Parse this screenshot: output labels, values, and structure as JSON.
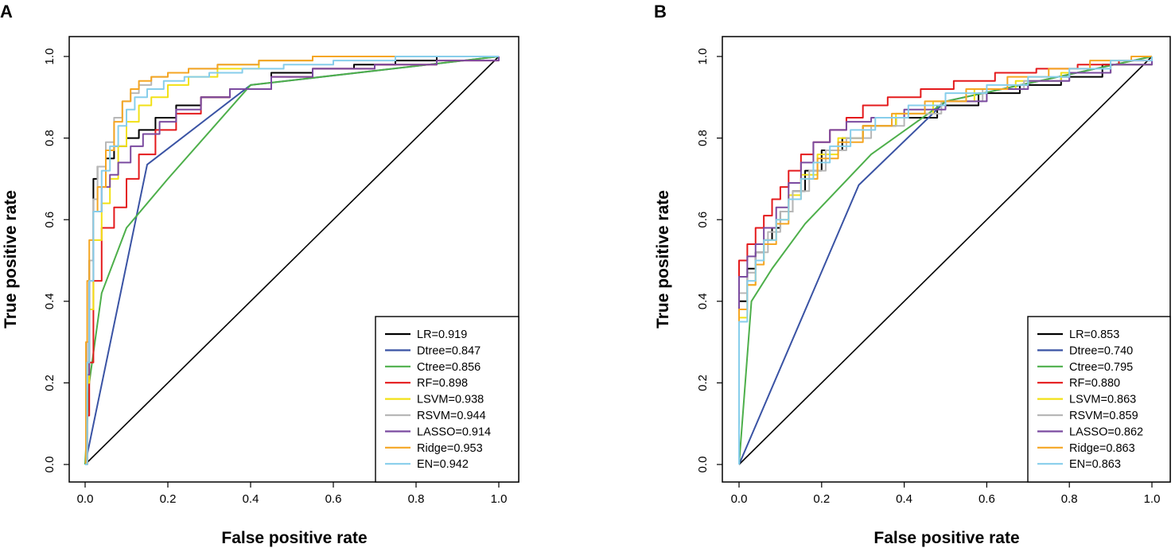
{
  "chart_data": [
    {
      "panel": "A",
      "type": "line",
      "title": "",
      "xlabel": "False positive rate",
      "ylabel": "True positive rate",
      "xlim": [
        0,
        1
      ],
      "ylim": [
        0,
        1
      ],
      "xticks": [
        "0.0",
        "0.2",
        "0.4",
        "0.6",
        "0.8",
        "1.0"
      ],
      "yticks": [
        "0.0",
        "0.2",
        "0.4",
        "0.6",
        "0.8",
        "1.0"
      ],
      "legend_position": "bottom-right",
      "diagonal": true,
      "series": [
        {
          "name": "LR",
          "auc": 0.919,
          "label": "LR=0.919",
          "color": "#000000",
          "x": [
            0,
            0.005,
            0.01,
            0.02,
            0.03,
            0.05,
            0.07,
            0.1,
            0.13,
            0.17,
            0.22,
            0.28,
            0.35,
            0.45,
            0.55,
            0.65,
            0.75,
            0.85,
            1.0
          ],
          "y": [
            0,
            0.25,
            0.5,
            0.7,
            0.73,
            0.75,
            0.78,
            0.8,
            0.82,
            0.85,
            0.88,
            0.9,
            0.92,
            0.96,
            0.97,
            0.98,
            0.99,
            1.0,
            1.0
          ]
        },
        {
          "name": "Dtree",
          "auc": 0.847,
          "label": "Dtree=0.847",
          "color": "#3A53A4",
          "x": [
            0,
            0.15,
            0.4,
            1.0
          ],
          "y": [
            0,
            0.735,
            0.93,
            1.0
          ]
        },
        {
          "name": "Ctree",
          "auc": 0.856,
          "label": "Ctree=0.856",
          "color": "#4DAF4A",
          "x": [
            0,
            0.01,
            0.04,
            0.1,
            0.2,
            0.4,
            1.0
          ],
          "y": [
            0,
            0.2,
            0.42,
            0.58,
            0.7,
            0.93,
            1.0
          ]
        },
        {
          "name": "RF",
          "auc": 0.898,
          "label": "RF=0.898",
          "color": "#E41A1C",
          "x": [
            0,
            0.005,
            0.01,
            0.02,
            0.04,
            0.07,
            0.1,
            0.13,
            0.17,
            0.22,
            0.28,
            0.35,
            0.45,
            0.55,
            0.7,
            0.85,
            1.0
          ],
          "y": [
            0,
            0.12,
            0.25,
            0.45,
            0.58,
            0.63,
            0.7,
            0.76,
            0.82,
            0.86,
            0.9,
            0.92,
            0.95,
            0.97,
            0.98,
            0.99,
            1.0
          ]
        },
        {
          "name": "LSVM",
          "auc": 0.938,
          "label": "LSVM=0.938",
          "color": "#F2E116",
          "x": [
            0,
            0.005,
            0.01,
            0.02,
            0.04,
            0.06,
            0.08,
            0.1,
            0.13,
            0.16,
            0.2,
            0.25,
            0.32,
            0.42,
            0.55,
            0.7,
            1.0
          ],
          "y": [
            0,
            0.2,
            0.38,
            0.55,
            0.64,
            0.7,
            0.78,
            0.84,
            0.88,
            0.9,
            0.93,
            0.95,
            0.97,
            0.99,
            1.0,
            1.0,
            1.0
          ]
        },
        {
          "name": "RSVM",
          "auc": 0.944,
          "label": "RSVM=0.944",
          "color": "#B7B7B7",
          "x": [
            0,
            0.005,
            0.01,
            0.02,
            0.03,
            0.05,
            0.07,
            0.09,
            0.11,
            0.13,
            0.16,
            0.2,
            0.25,
            0.32,
            0.42,
            0.55,
            0.7,
            1.0
          ],
          "y": [
            0,
            0.3,
            0.5,
            0.65,
            0.73,
            0.79,
            0.85,
            0.89,
            0.91,
            0.93,
            0.95,
            0.96,
            0.97,
            0.98,
            0.99,
            1.0,
            1.0,
            1.0
          ]
        },
        {
          "name": "LASSO",
          "auc": 0.914,
          "label": "LASSO=0.914",
          "color": "#7B4BA0",
          "x": [
            0,
            0.005,
            0.01,
            0.02,
            0.04,
            0.06,
            0.08,
            0.11,
            0.14,
            0.18,
            0.22,
            0.28,
            0.35,
            0.45,
            0.55,
            0.7,
            0.85,
            1.0
          ],
          "y": [
            0,
            0.22,
            0.45,
            0.62,
            0.68,
            0.71,
            0.74,
            0.78,
            0.81,
            0.84,
            0.87,
            0.9,
            0.92,
            0.95,
            0.97,
            0.98,
            0.99,
            1.0
          ]
        },
        {
          "name": "Ridge",
          "auc": 0.953,
          "label": "Ridge=0.953",
          "color": "#F5A623",
          "x": [
            0,
            0.002,
            0.005,
            0.01,
            0.02,
            0.03,
            0.05,
            0.07,
            0.09,
            0.11,
            0.13,
            0.16,
            0.2,
            0.25,
            0.32,
            0.42,
            0.55,
            0.7,
            1.0
          ],
          "y": [
            0,
            0.3,
            0.45,
            0.55,
            0.62,
            0.68,
            0.77,
            0.84,
            0.89,
            0.92,
            0.94,
            0.95,
            0.96,
            0.97,
            0.98,
            0.99,
            1.0,
            1.0,
            1.0
          ]
        },
        {
          "name": "EN",
          "auc": 0.942,
          "label": "EN=0.942",
          "color": "#87CEEB",
          "x": [
            0,
            0.005,
            0.01,
            0.02,
            0.04,
            0.06,
            0.08,
            0.1,
            0.12,
            0.15,
            0.19,
            0.24,
            0.3,
            0.38,
            0.48,
            0.6,
            0.75,
            1.0
          ],
          "y": [
            0,
            0.25,
            0.45,
            0.62,
            0.72,
            0.78,
            0.83,
            0.87,
            0.9,
            0.92,
            0.94,
            0.95,
            0.96,
            0.97,
            0.98,
            0.99,
            1.0,
            1.0
          ]
        }
      ]
    },
    {
      "panel": "B",
      "type": "line",
      "title": "",
      "xlabel": "False positive rate",
      "ylabel": "True positive rate",
      "xlim": [
        0,
        1
      ],
      "ylim": [
        0,
        1
      ],
      "xticks": [
        "0.0",
        "0.2",
        "0.4",
        "0.6",
        "0.8",
        "1.0"
      ],
      "yticks": [
        "0.0",
        "0.2",
        "0.4",
        "0.6",
        "0.8",
        "1.0"
      ],
      "legend_position": "bottom-right",
      "diagonal": true,
      "series": [
        {
          "name": "LR",
          "auc": 0.853,
          "label": "LR=0.853",
          "color": "#000000",
          "x": [
            0,
            0.0,
            0.02,
            0.04,
            0.06,
            0.08,
            0.1,
            0.13,
            0.16,
            0.2,
            0.25,
            0.3,
            0.38,
            0.48,
            0.58,
            0.68,
            0.78,
            0.88,
            1.0
          ],
          "y": [
            0,
            0.4,
            0.48,
            0.52,
            0.55,
            0.58,
            0.62,
            0.67,
            0.72,
            0.77,
            0.8,
            0.83,
            0.85,
            0.88,
            0.91,
            0.93,
            0.95,
            0.98,
            1.0
          ]
        },
        {
          "name": "Dtree",
          "auc": 0.74,
          "label": "Dtree=0.740",
          "color": "#3A53A4",
          "x": [
            0,
            0.29,
            0.5,
            1.0
          ],
          "y": [
            0,
            0.685,
            0.89,
            1.0
          ]
        },
        {
          "name": "Ctree",
          "auc": 0.795,
          "label": "Ctree=0.795",
          "color": "#4DAF4A",
          "x": [
            0,
            0.03,
            0.08,
            0.16,
            0.32,
            0.5,
            1.0
          ],
          "y": [
            0,
            0.4,
            0.48,
            0.59,
            0.76,
            0.89,
            1.0
          ]
        },
        {
          "name": "RF",
          "auc": 0.88,
          "label": "RF=0.880",
          "color": "#E41A1C",
          "x": [
            0,
            0.0,
            0.02,
            0.04,
            0.06,
            0.08,
            0.1,
            0.12,
            0.15,
            0.18,
            0.22,
            0.26,
            0.3,
            0.36,
            0.44,
            0.52,
            0.62,
            0.72,
            0.82,
            0.92,
            1.0
          ],
          "y": [
            0,
            0.5,
            0.54,
            0.58,
            0.61,
            0.65,
            0.68,
            0.72,
            0.76,
            0.79,
            0.82,
            0.85,
            0.88,
            0.9,
            0.92,
            0.94,
            0.96,
            0.97,
            0.98,
            0.99,
            1.0
          ]
        },
        {
          "name": "LSVM",
          "auc": 0.863,
          "label": "LSVM=0.863",
          "color": "#F2E116",
          "x": [
            0,
            0.0,
            0.02,
            0.04,
            0.06,
            0.09,
            0.12,
            0.15,
            0.19,
            0.24,
            0.3,
            0.38,
            0.47,
            0.57,
            0.67,
            0.78,
            0.9,
            1.0
          ],
          "y": [
            0,
            0.36,
            0.44,
            0.5,
            0.55,
            0.6,
            0.66,
            0.71,
            0.76,
            0.8,
            0.83,
            0.86,
            0.89,
            0.92,
            0.94,
            0.96,
            0.98,
            1.0
          ]
        },
        {
          "name": "RSVM",
          "auc": 0.859,
          "label": "RSVM=0.859",
          "color": "#B7B7B7",
          "x": [
            0,
            0.0,
            0.02,
            0.04,
            0.07,
            0.1,
            0.13,
            0.17,
            0.21,
            0.26,
            0.32,
            0.4,
            0.49,
            0.59,
            0.69,
            0.8,
            0.9,
            1.0
          ],
          "y": [
            0,
            0.42,
            0.47,
            0.52,
            0.57,
            0.62,
            0.67,
            0.72,
            0.77,
            0.8,
            0.83,
            0.86,
            0.89,
            0.92,
            0.94,
            0.96,
            0.98,
            1.0
          ]
        },
        {
          "name": "LASSO",
          "auc": 0.862,
          "label": "LASSO=0.862",
          "color": "#7B4BA0",
          "x": [
            0,
            0.0,
            0.02,
            0.04,
            0.06,
            0.09,
            0.12,
            0.15,
            0.18,
            0.22,
            0.26,
            0.32,
            0.4,
            0.5,
            0.6,
            0.7,
            0.8,
            0.9,
            1.0
          ],
          "y": [
            0,
            0.46,
            0.51,
            0.54,
            0.58,
            0.63,
            0.69,
            0.74,
            0.79,
            0.82,
            0.84,
            0.85,
            0.87,
            0.89,
            0.92,
            0.94,
            0.96,
            0.98,
            1.0
          ]
        },
        {
          "name": "Ridge",
          "auc": 0.863,
          "label": "Ridge=0.863",
          "color": "#F5A623",
          "x": [
            0,
            0.0,
            0.02,
            0.04,
            0.06,
            0.09,
            0.12,
            0.15,
            0.19,
            0.24,
            0.3,
            0.37,
            0.45,
            0.55,
            0.65,
            0.75,
            0.85,
            0.95,
            1.0
          ],
          "y": [
            0,
            0.38,
            0.44,
            0.49,
            0.54,
            0.59,
            0.65,
            0.7,
            0.75,
            0.79,
            0.83,
            0.86,
            0.89,
            0.92,
            0.95,
            0.97,
            0.99,
            1.0,
            1.0
          ]
        },
        {
          "name": "EN",
          "auc": 0.863,
          "label": "EN=0.863",
          "color": "#87CEEB",
          "x": [
            0,
            0.0,
            0.02,
            0.04,
            0.06,
            0.09,
            0.12,
            0.15,
            0.18,
            0.22,
            0.27,
            0.33,
            0.41,
            0.5,
            0.6,
            0.7,
            0.8,
            0.9,
            1.0
          ],
          "y": [
            0,
            0.35,
            0.45,
            0.5,
            0.55,
            0.6,
            0.65,
            0.7,
            0.74,
            0.78,
            0.82,
            0.85,
            0.88,
            0.91,
            0.93,
            0.95,
            0.97,
            0.99,
            1.0
          ]
        }
      ]
    }
  ]
}
